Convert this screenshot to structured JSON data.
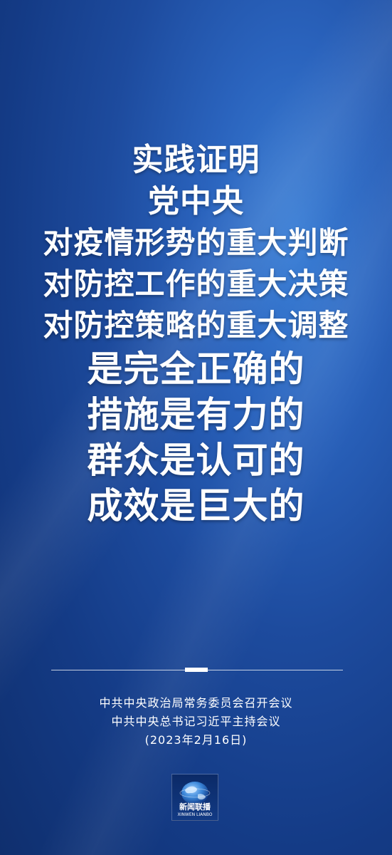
{
  "slogan": {
    "line1": "实践证明",
    "line2": "党中央",
    "line3": "对疫情形势的重大判断",
    "line4": "对防控工作的重大决策",
    "line5": "对防控策略的重大调整",
    "line6": "是完全正确的",
    "line7": "措施是有力的",
    "line8": "群众是认可的",
    "line9": "成效是巨大的"
  },
  "footer": {
    "line1": "中共中央政治局常务委员会召开会议",
    "line2": "中共中央总书记习近平主持会议",
    "line3": "(2023年2月16日)"
  },
  "logo": {
    "name_cn": "新闻联播",
    "name_en": "XINWEN LIANBO",
    "icon": "globe-icon"
  },
  "colors": {
    "background_primary": "#1d4b9e",
    "background_light": "#3b7fd6",
    "text": "#ffffff"
  }
}
